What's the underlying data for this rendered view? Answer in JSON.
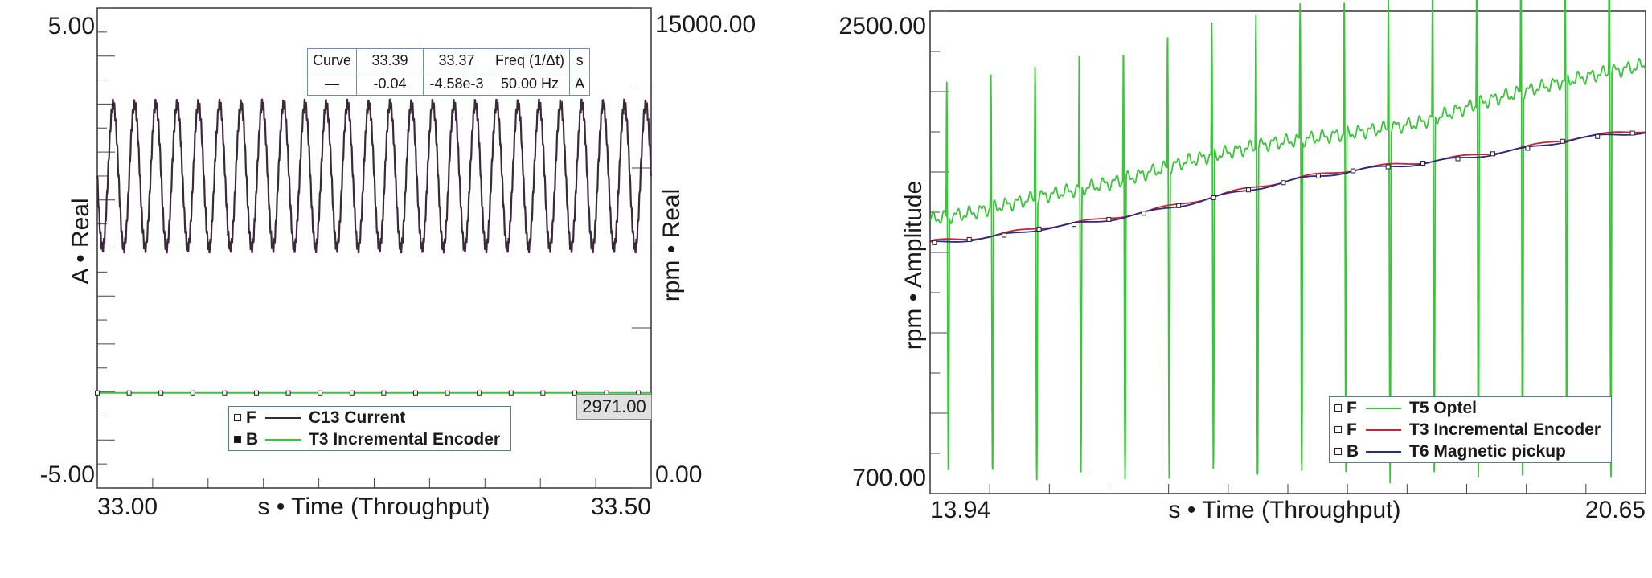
{
  "chart_data": [
    {
      "type": "line",
      "xlabel": "s • Time (Throughput)",
      "ylabel_left": "A • Real",
      "ylabel_right": "rpm • Real",
      "x_ticks": [
        "33.00",
        "33.50"
      ],
      "y_left_ticks": [
        "5.00",
        "-5.00"
      ],
      "y_right_ticks": [
        "15000.00",
        "0.00"
      ],
      "xlim": [
        32.99,
        33.51
      ],
      "ylim_left": [
        -5,
        5
      ],
      "ylim_right": [
        0,
        15000
      ],
      "series": [
        {
          "name": "C13 Current",
          "flag": "F",
          "axis": "left",
          "color": "#3a2a3a",
          "signal": "sinusoid",
          "frequency_hz": 50,
          "amplitude": 1.5,
          "offset": 1.5
        },
        {
          "name": "T3 Incremental Encoder",
          "flag": "B",
          "axis": "right",
          "color": "#3cc43c",
          "signal": "constant",
          "value": 2971
        }
      ],
      "cursor_table": {
        "headers": [
          "Curve",
          "33.39",
          "33.37",
          "Freq (1/Δt)",
          "s"
        ],
        "row": [
          "—",
          "-0.04",
          "-4.58e-3",
          "50.00  Hz",
          "A"
        ]
      },
      "value_readout": "2971.00",
      "legend_placement": "bottom-center"
    },
    {
      "type": "line",
      "xlabel": "s • Time (Throughput)",
      "ylabel": "rpm • Amplitude",
      "x_ticks": [
        "13.94",
        "20.65"
      ],
      "y_ticks": [
        "2500.00",
        "700.00"
      ],
      "xlim": [
        13.94,
        20.65
      ],
      "ylim": [
        700,
        2500
      ],
      "series": [
        {
          "name": "T5 Optel",
          "flag": "F",
          "color": "#3cc43c",
          "x": [
            13.94,
            14.3,
            15.0,
            15.7,
            16.4,
            17.1,
            17.8,
            18.5,
            19.2,
            19.9,
            20.65
          ],
          "y": [
            1725,
            1745,
            1810,
            1865,
            1945,
            2005,
            2040,
            2080,
            2170,
            2240,
            2300
          ]
        },
        {
          "name": "T3 Incremental Encoder",
          "flag": "F",
          "color": "#c0283a",
          "x": [
            13.94,
            14.5,
            15.0,
            15.5,
            16.0,
            16.5,
            17.0,
            17.5,
            18.0,
            18.5,
            19.0,
            19.5,
            20.0,
            20.65
          ],
          "y": [
            1640,
            1660,
            1695,
            1720,
            1755,
            1800,
            1845,
            1885,
            1915,
            1935,
            1960,
            1990,
            2030,
            2055
          ]
        },
        {
          "name": "T6 Magnetic pickup",
          "flag": "B",
          "color": "#2a2a80",
          "x": [
            13.94,
            14.5,
            15.0,
            15.5,
            16.0,
            16.5,
            17.0,
            17.5,
            18.0,
            18.5,
            19.0,
            19.5,
            20.0,
            20.65
          ],
          "y": [
            1635,
            1655,
            1690,
            1715,
            1750,
            1795,
            1840,
            1880,
            1910,
            1930,
            1955,
            1985,
            2025,
            2050
          ]
        }
      ],
      "legend_placement": "bottom-right"
    }
  ],
  "colors": {
    "frame": "#333333",
    "legend_border": "#5a7a96",
    "table_border": "#6f8fb0"
  }
}
